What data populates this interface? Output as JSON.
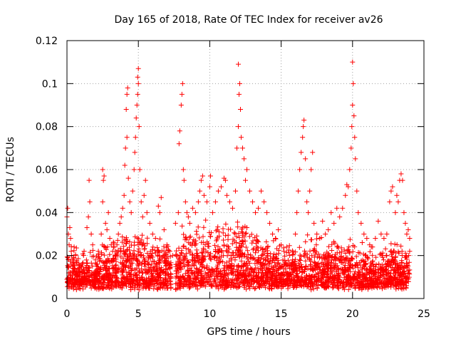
{
  "chart_data": {
    "type": "scatter",
    "title": "Day 165 of 2018, Rate Of TEC Index for receiver av26",
    "xlabel": "GPS time / hours",
    "ylabel": "ROTI / TECUs",
    "xlim": [
      0,
      25
    ],
    "ylim": [
      0,
      0.12
    ],
    "x_ticks": [
      "0",
      "5",
      "10",
      "15",
      "20",
      "25"
    ],
    "y_ticks": [
      "0",
      "0.02",
      "0.04",
      "0.06",
      "0.08",
      "0.1",
      "0.12"
    ],
    "marker": "+",
    "grid": true,
    "colors": {
      "series": "#ff0000",
      "grid": "#a0a0a0",
      "axis": "#000000"
    },
    "series": [
      {
        "name": "ROTI",
        "points": [
          [
            0.0,
            0.038
          ],
          [
            0.05,
            0.042
          ],
          [
            0.1,
            0.03
          ],
          [
            0.15,
            0.025
          ],
          [
            0.2,
            0.033
          ],
          [
            0.25,
            0.028
          ],
          [
            0.3,
            0.022
          ],
          [
            0.4,
            0.018
          ],
          [
            0.5,
            0.024
          ],
          [
            0.6,
            0.02
          ],
          [
            0.7,
            0.016
          ],
          [
            0.8,
            0.014
          ],
          [
            1.0,
            0.015
          ],
          [
            1.2,
            0.022
          ],
          [
            1.4,
            0.033
          ],
          [
            1.5,
            0.038
          ],
          [
            1.6,
            0.045
          ],
          [
            1.55,
            0.055
          ],
          [
            1.7,
            0.03
          ],
          [
            1.8,
            0.025
          ],
          [
            2.0,
            0.018
          ],
          [
            2.2,
            0.022
          ],
          [
            2.4,
            0.03
          ],
          [
            2.5,
            0.045
          ],
          [
            2.55,
            0.055
          ],
          [
            2.6,
            0.057
          ],
          [
            2.5,
            0.06
          ],
          [
            2.7,
            0.035
          ],
          [
            2.8,
            0.032
          ],
          [
            2.9,
            0.04
          ],
          [
            3.0,
            0.028
          ],
          [
            3.1,
            0.025
          ],
          [
            3.2,
            0.022
          ],
          [
            3.4,
            0.02
          ],
          [
            3.5,
            0.025
          ],
          [
            3.6,
            0.03
          ],
          [
            3.7,
            0.035
          ],
          [
            3.8,
            0.038
          ],
          [
            3.9,
            0.042
          ],
          [
            4.0,
            0.048
          ],
          [
            4.05,
            0.062
          ],
          [
            4.1,
            0.07
          ],
          [
            4.15,
            0.088
          ],
          [
            4.2,
            0.095
          ],
          [
            4.25,
            0.098
          ],
          [
            4.2,
            0.075
          ],
          [
            4.3,
            0.056
          ],
          [
            4.4,
            0.045
          ],
          [
            4.5,
            0.04
          ],
          [
            4.6,
            0.05
          ],
          [
            4.7,
            0.06
          ],
          [
            4.75,
            0.068
          ],
          [
            4.8,
            0.075
          ],
          [
            4.85,
            0.084
          ],
          [
            4.9,
            0.09
          ],
          [
            4.95,
            0.095
          ],
          [
            5.0,
            0.1
          ],
          [
            5.0,
            0.107
          ],
          [
            4.95,
            0.103
          ],
          [
            5.05,
            0.08
          ],
          [
            5.1,
            0.06
          ],
          [
            5.2,
            0.045
          ],
          [
            5.3,
            0.038
          ],
          [
            5.4,
            0.048
          ],
          [
            5.5,
            0.055
          ],
          [
            5.6,
            0.04
          ],
          [
            5.8,
            0.035
          ],
          [
            6.0,
            0.03
          ],
          [
            6.2,
            0.028
          ],
          [
            6.4,
            0.043
          ],
          [
            6.5,
            0.04
          ],
          [
            6.6,
            0.047
          ],
          [
            6.8,
            0.032
          ],
          [
            7.0,
            0.025
          ],
          [
            7.2,
            0.022
          ],
          [
            7.4,
            0.02
          ],
          [
            7.6,
            0.035
          ],
          [
            7.8,
            0.04
          ],
          [
            7.85,
            0.072
          ],
          [
            7.9,
            0.078
          ],
          [
            8.0,
            0.09
          ],
          [
            8.05,
            0.095
          ],
          [
            8.1,
            0.1
          ],
          [
            8.15,
            0.06
          ],
          [
            8.2,
            0.055
          ],
          [
            8.3,
            0.045
          ],
          [
            8.4,
            0.04
          ],
          [
            8.5,
            0.038
          ],
          [
            8.6,
            0.035
          ],
          [
            8.8,
            0.042
          ],
          [
            9.0,
            0.04
          ],
          [
            9.2,
            0.045
          ],
          [
            9.3,
            0.05
          ],
          [
            9.4,
            0.055
          ],
          [
            9.5,
            0.057
          ],
          [
            9.6,
            0.048
          ],
          [
            9.8,
            0.045
          ],
          [
            10.0,
            0.052
          ],
          [
            10.05,
            0.057
          ],
          [
            10.2,
            0.04
          ],
          [
            10.4,
            0.045
          ],
          [
            10.6,
            0.05
          ],
          [
            10.8,
            0.052
          ],
          [
            11.0,
            0.056
          ],
          [
            11.1,
            0.055
          ],
          [
            11.2,
            0.048
          ],
          [
            11.4,
            0.045
          ],
          [
            11.6,
            0.042
          ],
          [
            11.8,
            0.05
          ],
          [
            11.9,
            0.07
          ],
          [
            12.0,
            0.08
          ],
          [
            12.05,
            0.095
          ],
          [
            12.1,
            0.1
          ],
          [
            12.0,
            0.109
          ],
          [
            12.15,
            0.088
          ],
          [
            12.2,
            0.075
          ],
          [
            12.3,
            0.07
          ],
          [
            12.4,
            0.065
          ],
          [
            12.5,
            0.055
          ],
          [
            12.6,
            0.06
          ],
          [
            12.8,
            0.05
          ],
          [
            13.0,
            0.045
          ],
          [
            13.2,
            0.04
          ],
          [
            13.4,
            0.042
          ],
          [
            13.6,
            0.05
          ],
          [
            13.8,
            0.045
          ],
          [
            14.0,
            0.04
          ],
          [
            14.2,
            0.035
          ],
          [
            14.4,
            0.03
          ],
          [
            14.6,
            0.028
          ],
          [
            14.8,
            0.032
          ],
          [
            15.0,
            0.025
          ],
          [
            15.2,
            0.022
          ],
          [
            15.4,
            0.024
          ],
          [
            15.6,
            0.02
          ],
          [
            15.8,
            0.018
          ],
          [
            16.0,
            0.03
          ],
          [
            16.1,
            0.04
          ],
          [
            16.2,
            0.05
          ],
          [
            16.3,
            0.06
          ],
          [
            16.4,
            0.068
          ],
          [
            16.5,
            0.075
          ],
          [
            16.55,
            0.08
          ],
          [
            16.6,
            0.083
          ],
          [
            16.7,
            0.065
          ],
          [
            16.8,
            0.045
          ],
          [
            16.9,
            0.04
          ],
          [
            17.0,
            0.05
          ],
          [
            17.1,
            0.06
          ],
          [
            17.2,
            0.068
          ],
          [
            17.3,
            0.035
          ],
          [
            17.5,
            0.03
          ],
          [
            17.7,
            0.028
          ],
          [
            17.9,
            0.036
          ],
          [
            18.1,
            0.03
          ],
          [
            18.3,
            0.032
          ],
          [
            18.5,
            0.04
          ],
          [
            18.7,
            0.035
          ],
          [
            18.9,
            0.042
          ],
          [
            19.1,
            0.038
          ],
          [
            19.3,
            0.042
          ],
          [
            19.5,
            0.048
          ],
          [
            19.6,
            0.053
          ],
          [
            19.7,
            0.052
          ],
          [
            19.8,
            0.06
          ],
          [
            19.9,
            0.07
          ],
          [
            19.95,
            0.08
          ],
          [
            20.0,
            0.09
          ],
          [
            20.05,
            0.1
          ],
          [
            20.0,
            0.11
          ],
          [
            20.1,
            0.085
          ],
          [
            20.15,
            0.075
          ],
          [
            20.2,
            0.065
          ],
          [
            20.3,
            0.05
          ],
          [
            20.4,
            0.04
          ],
          [
            20.6,
            0.035
          ],
          [
            20.8,
            0.03
          ],
          [
            21.0,
            0.028
          ],
          [
            21.2,
            0.025
          ],
          [
            21.4,
            0.024
          ],
          [
            21.6,
            0.028
          ],
          [
            21.8,
            0.036
          ],
          [
            22.0,
            0.03
          ],
          [
            22.2,
            0.028
          ],
          [
            22.4,
            0.03
          ],
          [
            22.6,
            0.045
          ],
          [
            22.7,
            0.05
          ],
          [
            22.8,
            0.052
          ],
          [
            23.0,
            0.04
          ],
          [
            23.1,
            0.048
          ],
          [
            23.2,
            0.045
          ],
          [
            23.3,
            0.055
          ],
          [
            23.4,
            0.058
          ],
          [
            23.5,
            0.055
          ],
          [
            23.6,
            0.04
          ],
          [
            23.7,
            0.035
          ],
          [
            23.8,
            0.03
          ],
          [
            23.9,
            0.032
          ],
          [
            24.0,
            0.028
          ],
          [
            24.0,
            0.022
          ]
        ]
      }
    ],
    "dense_band": {
      "note": "dense cloud of points filling the lower portion of the plot",
      "gaps_hours": [
        [
          7.3,
          7.6
        ]
      ],
      "envelope": [
        [
          0,
          0.03
        ],
        [
          1,
          0.02
        ],
        [
          2,
          0.026
        ],
        [
          3,
          0.028
        ],
        [
          4,
          0.032
        ],
        [
          5,
          0.035
        ],
        [
          6,
          0.03
        ],
        [
          7,
          0.026
        ],
        [
          7.6,
          0.028
        ],
        [
          8,
          0.034
        ],
        [
          9,
          0.036
        ],
        [
          10,
          0.038
        ],
        [
          11,
          0.038
        ],
        [
          12,
          0.04
        ],
        [
          13,
          0.036
        ],
        [
          14,
          0.032
        ],
        [
          15,
          0.028
        ],
        [
          16,
          0.026
        ],
        [
          17,
          0.03
        ],
        [
          18,
          0.028
        ],
        [
          19,
          0.03
        ],
        [
          20,
          0.03
        ],
        [
          21,
          0.025
        ],
        [
          22,
          0.026
        ],
        [
          23,
          0.028
        ],
        [
          24,
          0.022
        ]
      ],
      "base": 0.006
    }
  }
}
